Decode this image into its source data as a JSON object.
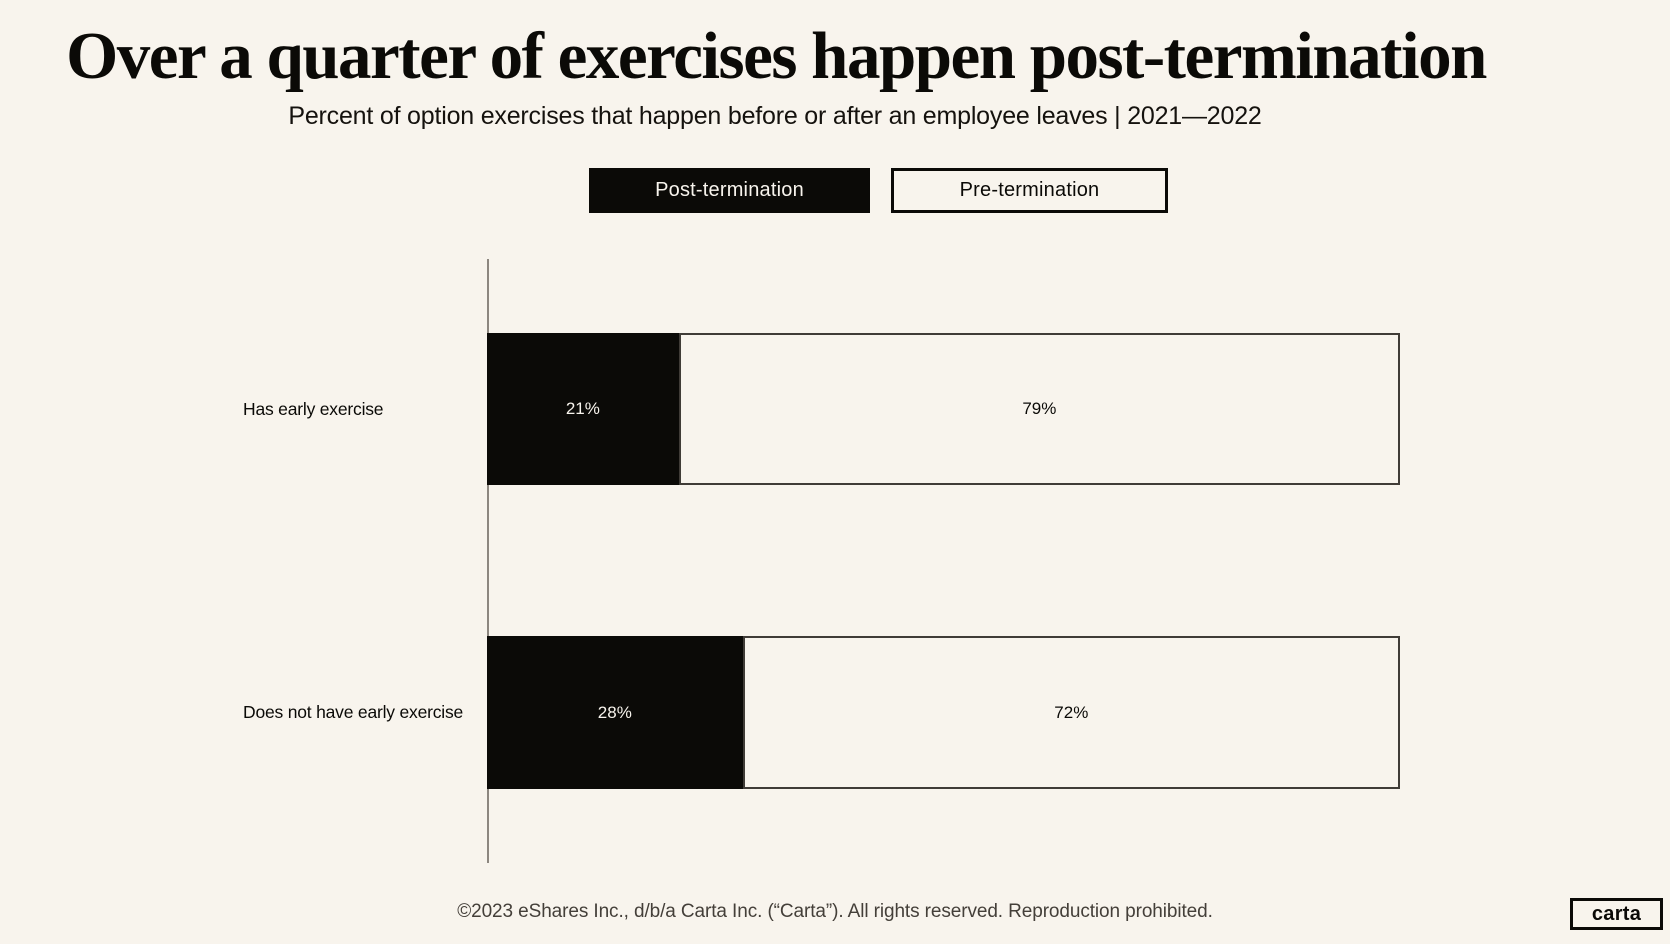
{
  "page": {
    "background_color": "#F8F4ED",
    "accent_black": "#0B0A07",
    "axis_line_color": "#8D8780",
    "bar_outline_color": "#403C37",
    "title": "Over a quarter of exercises happen post-termination",
    "subtitle": "Percent of option exercises that happen before or after an employee leaves | 2021—2022",
    "footer": "©2023 eShares Inc., d/b/a Carta Inc. (“Carta”). All rights reserved. Reproduction prohibited.",
    "logo": "carta"
  },
  "legend": {
    "position": "top",
    "items": [
      {
        "label": "Post-termination",
        "style": "filled",
        "fill": "#0B0A07",
        "text_color": "#F8F4ED"
      },
      {
        "label": "Pre-termination",
        "style": "outlined",
        "fill": "none",
        "text_color": "#0B0A07"
      }
    ]
  },
  "chart_data": {
    "type": "bar",
    "orientation": "horizontal",
    "stacked": true,
    "title": "Over a quarter of exercises happen post-termination",
    "subtitle": "Percent of option exercises that happen before or after an employee leaves | 2021—2022",
    "categories": [
      "Has early exercise",
      "Does not have early exercise"
    ],
    "series": [
      {
        "name": "Post-termination",
        "values": [
          21,
          28
        ],
        "color": "#0B0A07",
        "label_color": "#F7F3EC"
      },
      {
        "name": "Pre-termination",
        "values": [
          79,
          72
        ],
        "color": "#F8F4ED",
        "label_color": "#0B0A07"
      }
    ],
    "value_suffix": "%",
    "xlim": [
      0,
      100
    ],
    "grid": false,
    "legend_position": "top"
  }
}
